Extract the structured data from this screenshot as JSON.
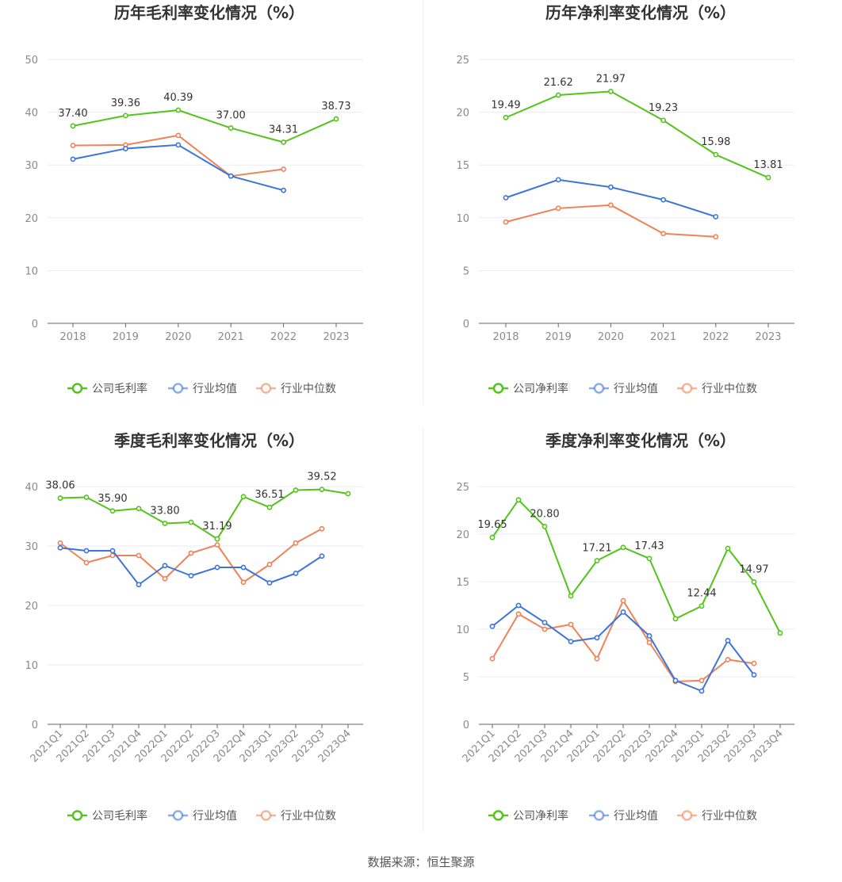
{
  "colors": {
    "company": "#52c41a",
    "avg": "#3c74d9",
    "median": "#ef8358",
    "grid": "#e8ebf3",
    "axis": "#666666"
  },
  "legend": {
    "company_gross": "公司毛利率",
    "company_net": "公司净利率",
    "avg": "行业均值",
    "median": "行业中位数"
  },
  "source": "数据来源：恒生聚源",
  "chart_data": [
    {
      "type": "line",
      "title": "历年毛利率变化情况（%）",
      "categories": [
        "2018",
        "2019",
        "2020",
        "2021",
        "2022",
        "2023"
      ],
      "ylim": [
        0,
        50
      ],
      "yticks": [
        0,
        10,
        20,
        30,
        40,
        50
      ],
      "grid": true,
      "legend_position": "bottom",
      "series": [
        {
          "name": "公司毛利率",
          "values": [
            37.4,
            39.36,
            40.39,
            37.0,
            34.31,
            38.73
          ]
        },
        {
          "name": "行业均值",
          "values": [
            31.1,
            33.1,
            33.8,
            27.9,
            25.2,
            null
          ]
        },
        {
          "name": "行业中位数",
          "values": [
            33.7,
            33.8,
            35.6,
            27.9,
            29.2,
            null
          ]
        }
      ],
      "labels": [
        "37.40",
        "39.36",
        "40.39",
        "37.00",
        "34.31",
        "38.73"
      ]
    },
    {
      "type": "line",
      "title": "历年净利率变化情况（%）",
      "categories": [
        "2018",
        "2019",
        "2020",
        "2021",
        "2022",
        "2023"
      ],
      "ylim": [
        0,
        25
      ],
      "yticks": [
        0,
        5,
        10,
        15,
        20,
        25
      ],
      "grid": true,
      "legend_position": "bottom",
      "series": [
        {
          "name": "公司净利率",
          "values": [
            19.49,
            21.62,
            21.97,
            19.23,
            15.98,
            13.81
          ]
        },
        {
          "name": "行业均值",
          "values": [
            11.9,
            13.6,
            12.9,
            11.7,
            10.1,
            null
          ]
        },
        {
          "name": "行业中位数",
          "values": [
            9.6,
            10.9,
            11.2,
            8.5,
            8.2,
            null
          ]
        }
      ],
      "labels": [
        "19.49",
        "21.62",
        "21.97",
        "19.23",
        "15.98",
        "13.81"
      ]
    },
    {
      "type": "line",
      "title": "季度毛利率变化情况（%）",
      "categories": [
        "2021Q1",
        "2021Q2",
        "2021Q3",
        "2021Q4",
        "2022Q1",
        "2022Q2",
        "2022Q3",
        "2022Q4",
        "2023Q1",
        "2023Q2",
        "2023Q3",
        "2023Q4"
      ],
      "ylim": [
        0,
        40
      ],
      "yticks": [
        0,
        10,
        20,
        30,
        40
      ],
      "grid": true,
      "legend_position": "bottom",
      "series": [
        {
          "name": "公司毛利率",
          "values": [
            38.06,
            38.2,
            35.9,
            36.3,
            33.8,
            34.0,
            31.19,
            38.3,
            36.51,
            39.4,
            39.52,
            38.8
          ]
        },
        {
          "name": "行业均值",
          "values": [
            29.7,
            29.2,
            29.2,
            23.5,
            26.7,
            25.0,
            26.4,
            26.4,
            23.8,
            25.4,
            28.3,
            null
          ]
        },
        {
          "name": "行业中位数",
          "values": [
            30.5,
            27.2,
            28.4,
            28.4,
            24.5,
            28.8,
            30.2,
            23.9,
            26.9,
            30.5,
            32.9,
            null
          ]
        }
      ],
      "labels": [
        "38.06",
        "",
        "35.90",
        "",
        "33.80",
        "",
        "31.19",
        "",
        "36.51",
        "",
        "39.52",
        ""
      ]
    },
    {
      "type": "line",
      "title": "季度净利率变化情况（%）",
      "categories": [
        "2021Q1",
        "2021Q2",
        "2021Q3",
        "2021Q4",
        "2022Q1",
        "2022Q2",
        "2022Q3",
        "2022Q4",
        "2023Q1",
        "2023Q2",
        "2023Q3",
        "2023Q4"
      ],
      "ylim": [
        0,
        25
      ],
      "yticks": [
        0,
        5,
        10,
        15,
        20,
        25
      ],
      "grid": true,
      "legend_position": "bottom",
      "series": [
        {
          "name": "公司净利率",
          "values": [
            19.65,
            23.6,
            20.8,
            13.5,
            17.21,
            18.6,
            17.43,
            11.1,
            12.44,
            18.5,
            14.97,
            9.6
          ]
        },
        {
          "name": "行业均值",
          "values": [
            10.3,
            12.5,
            10.7,
            8.7,
            9.1,
            11.8,
            9.3,
            4.6,
            3.5,
            8.8,
            5.2,
            null
          ]
        },
        {
          "name": "行业中位数",
          "values": [
            6.9,
            11.6,
            10.0,
            10.5,
            6.9,
            13.0,
            8.6,
            4.5,
            4.6,
            6.8,
            6.4,
            null
          ]
        }
      ],
      "labels": [
        "19.65",
        "",
        "20.80",
        "",
        "17.21",
        "",
        "17.43",
        "",
        "12.44",
        "",
        "14.97",
        ""
      ]
    }
  ]
}
